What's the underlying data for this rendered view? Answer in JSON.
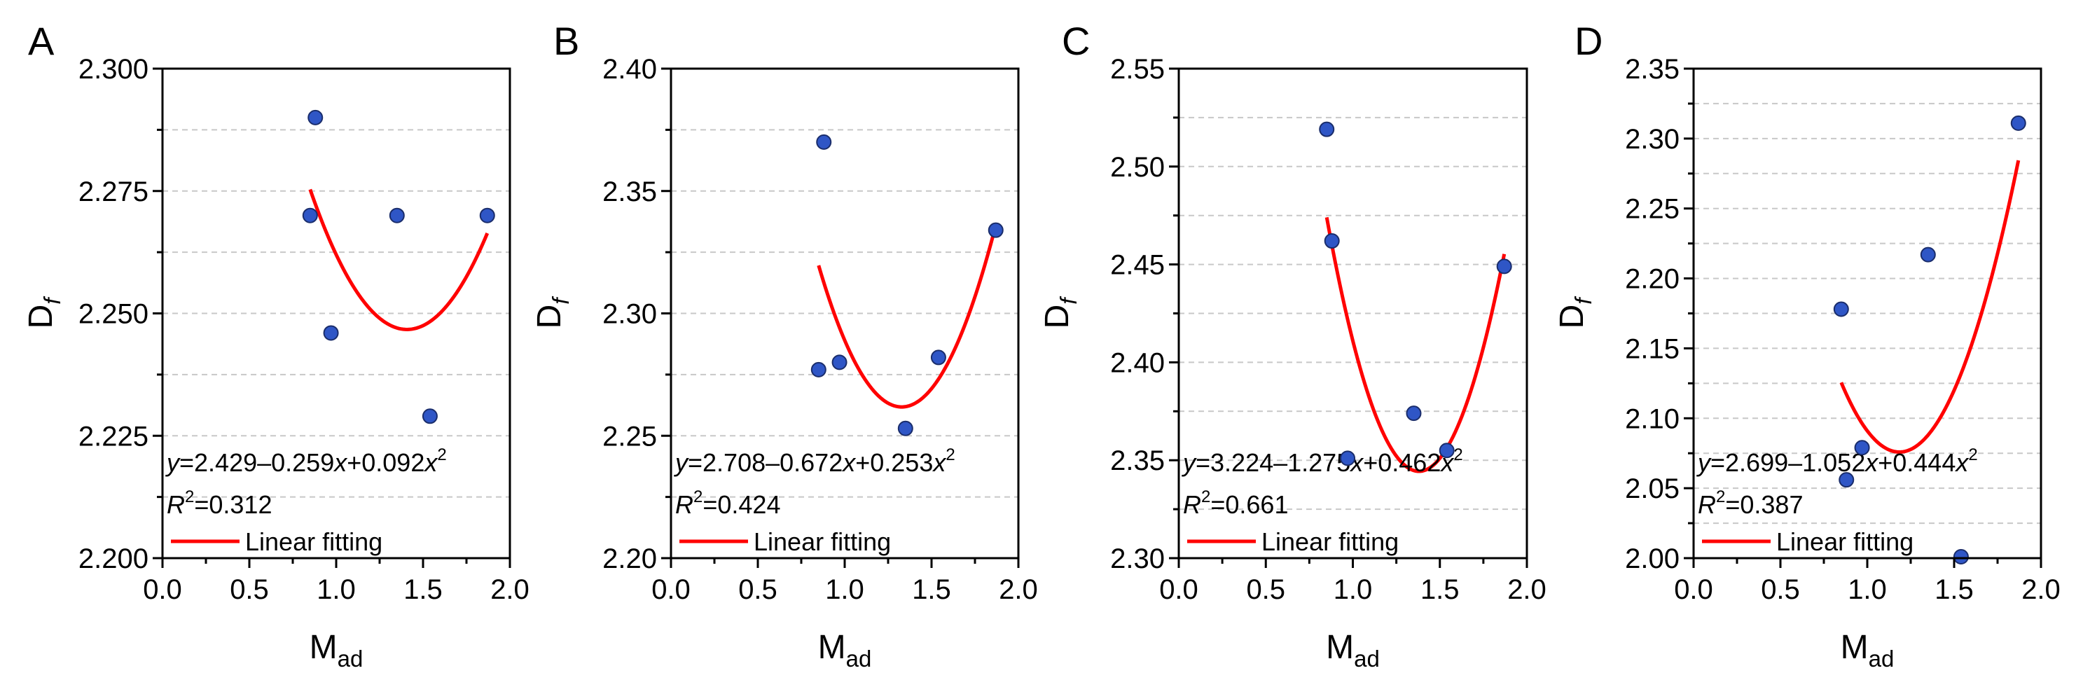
{
  "chart_data": [
    {
      "type": "scatter",
      "panel": "A",
      "xlabel": "M",
      "xlabel_sub": "ad",
      "ylabel": "D",
      "ylabel_sub": "f",
      "xlim": [
        0.0,
        2.0
      ],
      "ylim": [
        2.2,
        2.3
      ],
      "x_ticks": [
        "0.0",
        "0.5",
        "1.0",
        "1.5",
        "2.0"
      ],
      "y_ticks": [
        "2.200",
        "2.225",
        "2.250",
        "2.275",
        "2.300"
      ],
      "grid": "horizontal dashed",
      "points": [
        {
          "x": 0.85,
          "y": 2.27
        },
        {
          "x": 0.88,
          "y": 2.29
        },
        {
          "x": 0.97,
          "y": 2.246
        },
        {
          "x": 1.35,
          "y": 2.27
        },
        {
          "x": 1.54,
          "y": 2.229
        },
        {
          "x": 1.87,
          "y": 2.27
        }
      ],
      "fit": {
        "a": 2.429,
        "b": -0.259,
        "c": 0.092,
        "xrange": [
          0.85,
          1.87
        ]
      },
      "equation": {
        "y_var": "y",
        "eq_body": "=2.429–0.259",
        "x_var": "x",
        "plus": "+0.092",
        "x2": "x",
        "exp": "2"
      },
      "r2": {
        "R": "R",
        "exp": "2",
        "value": "=0.312"
      },
      "legend": "Linear fitting"
    },
    {
      "type": "scatter",
      "panel": "B",
      "xlabel": "M",
      "xlabel_sub": "ad",
      "ylabel": "D",
      "ylabel_sub": "f",
      "xlim": [
        0.0,
        2.0
      ],
      "ylim": [
        2.2,
        2.4
      ],
      "x_ticks": [
        "0.0",
        "0.5",
        "1.0",
        "1.5",
        "2.0"
      ],
      "y_ticks": [
        "2.20",
        "2.25",
        "2.30",
        "2.35",
        "2.40"
      ],
      "grid": "horizontal dashed",
      "points": [
        {
          "x": 0.85,
          "y": 2.277
        },
        {
          "x": 0.88,
          "y": 2.37
        },
        {
          "x": 0.97,
          "y": 2.28
        },
        {
          "x": 1.35,
          "y": 2.253
        },
        {
          "x": 1.54,
          "y": 2.282
        },
        {
          "x": 1.87,
          "y": 2.334
        }
      ],
      "fit": {
        "a": 2.708,
        "b": -0.672,
        "c": 0.253,
        "xrange": [
          0.85,
          1.87
        ]
      },
      "equation": {
        "y_var": "y",
        "eq_body": "=2.708–0.672",
        "x_var": "x",
        "plus": "+0.253",
        "x2": "x",
        "exp": "2"
      },
      "r2": {
        "R": "R",
        "exp": "2",
        "value": "=0.424"
      },
      "legend": "Linear fitting"
    },
    {
      "type": "scatter",
      "panel": "C",
      "xlabel": "M",
      "xlabel_sub": "ad",
      "ylabel": "D",
      "ylabel_sub": "f",
      "xlim": [
        0.0,
        2.0
      ],
      "ylim": [
        2.3,
        2.55
      ],
      "x_ticks": [
        "0.0",
        "0.5",
        "1.0",
        "1.5",
        "2.0"
      ],
      "y_ticks": [
        "2.30",
        "2.35",
        "2.40",
        "2.45",
        "2.50",
        "2.55"
      ],
      "grid": "horizontal dashed",
      "points": [
        {
          "x": 0.85,
          "y": 2.519
        },
        {
          "x": 0.88,
          "y": 2.462
        },
        {
          "x": 0.97,
          "y": 2.351
        },
        {
          "x": 1.35,
          "y": 2.374
        },
        {
          "x": 1.54,
          "y": 2.355
        },
        {
          "x": 1.87,
          "y": 2.449
        }
      ],
      "fit": {
        "a": 3.224,
        "b": -1.275,
        "c": 0.462,
        "xrange": [
          0.85,
          1.87
        ]
      },
      "equation": {
        "y_var": "y",
        "eq_body": "=3.224–1.275",
        "x_var": "x",
        "plus": "+0.462",
        "x2": "x",
        "exp": "2"
      },
      "r2": {
        "R": "R",
        "exp": "2",
        "value": "=0.661"
      },
      "legend": "Linear fitting"
    },
    {
      "type": "scatter",
      "panel": "D",
      "xlabel": "M",
      "xlabel_sub": "ad",
      "ylabel": "D",
      "ylabel_sub": "f",
      "xlim": [
        0.0,
        2.0
      ],
      "ylim": [
        2.0,
        2.35
      ],
      "x_ticks": [
        "0.0",
        "0.5",
        "1.0",
        "1.5",
        "2.0"
      ],
      "y_ticks": [
        "2.00",
        "2.05",
        "2.10",
        "2.15",
        "2.20",
        "2.25",
        "2.30",
        "2.35"
      ],
      "grid": "horizontal dashed",
      "points": [
        {
          "x": 0.85,
          "y": 2.178
        },
        {
          "x": 0.88,
          "y": 2.056
        },
        {
          "x": 0.97,
          "y": 2.079
        },
        {
          "x": 1.35,
          "y": 2.217
        },
        {
          "x": 1.54,
          "y": 2.001
        },
        {
          "x": 1.87,
          "y": 2.311
        }
      ],
      "fit": {
        "a": 2.699,
        "b": -1.052,
        "c": 0.444,
        "xrange": [
          0.85,
          1.87
        ]
      },
      "equation": {
        "y_var": "y",
        "eq_body": "=2.699–1.052",
        "x_var": "x",
        "plus": "+0.444",
        "x2": "x",
        "exp": "2"
      },
      "r2": {
        "R": "R",
        "exp": "2",
        "value": "=0.387"
      },
      "legend": "Linear fitting"
    }
  ],
  "style": {
    "marker_fill": "#2f56c6",
    "marker_stroke": "#1a2d6b",
    "fit_color": "#ff0000",
    "grid_color": "#c8c8c8",
    "axis_color": "#000000"
  }
}
